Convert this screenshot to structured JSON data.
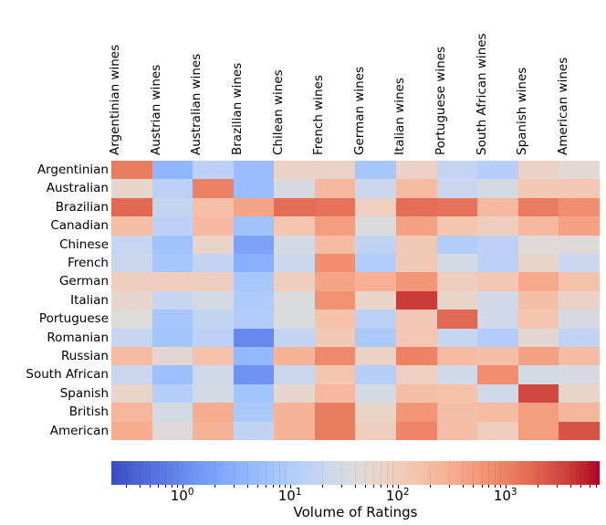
{
  "colors": {
    "background": "#ffffff",
    "text": "#000000",
    "colormap_low": "#3b4cc0",
    "colormap_mid": "#dddcdb",
    "colormap_high": "#b40426"
  },
  "chart_data": {
    "type": "heatmap",
    "title": "",
    "xlabel": "",
    "ylabel": "",
    "colormap": "coolwarm",
    "color_scale": "log",
    "colorbar_label": "Volume of Ratings",
    "colorbar_range": [
      0.22,
      7500
    ],
    "colorbar_ticks": [
      {
        "value": 1,
        "base": "10",
        "exp": "0"
      },
      {
        "value": 10,
        "base": "10",
        "exp": "1"
      },
      {
        "value": 100,
        "base": "10",
        "exp": "2"
      },
      {
        "value": 1000,
        "base": "10",
        "exp": "3"
      }
    ],
    "x_categories": [
      "Argentinian wines",
      "Austrian wines",
      "Australian wines",
      "Brazilian wines",
      "Chilean wines",
      "French wines",
      "German wines",
      "Italian wines",
      "Portuguese wines",
      "South African wines",
      "Spanish wines",
      "American wines"
    ],
    "y_categories": [
      "Argentinian",
      "Australian",
      "Brazilian",
      "Canadian",
      "Chinese",
      "French",
      "German",
      "Italian",
      "Portuguese",
      "Romanian",
      "Russian",
      "South African",
      "Spanish",
      "British",
      "American"
    ],
    "values": [
      [
        1150,
        3.7,
        14,
        5,
        76,
        76,
        7.6,
        76,
        18,
        12,
        76,
        50
      ],
      [
        62,
        14,
        1030,
        5,
        33,
        216,
        22,
        194,
        22,
        30,
        128,
        128
      ],
      [
        1740,
        18,
        175,
        404,
        1570,
        1410,
        84,
        1570,
        1410,
        216,
        1150,
        755
      ],
      [
        175,
        14,
        216,
        6.2,
        142,
        497,
        37,
        448,
        142,
        94,
        216,
        448
      ],
      [
        19.5,
        6.2,
        68,
        2,
        30,
        194,
        16,
        115,
        10.4,
        14,
        45,
        45
      ],
      [
        22,
        7.6,
        17.6,
        3,
        22,
        755,
        10.4,
        115,
        30,
        14,
        68,
        22
      ],
      [
        94,
        94,
        94,
        7.6,
        94,
        404,
        295,
        612,
        94,
        128,
        363,
        158
      ],
      [
        62,
        19.5,
        30,
        9.4,
        37,
        679,
        68,
        4000,
        68,
        27,
        175,
        76
      ],
      [
        41,
        7.6,
        17.6,
        10.4,
        37,
        158,
        14,
        128,
        1740,
        27,
        142,
        33
      ],
      [
        19.5,
        6.9,
        14,
        0.95,
        17.6,
        115,
        8.5,
        128,
        19.5,
        10.4,
        55,
        16
      ],
      [
        194,
        55,
        158,
        4.1,
        266,
        837,
        76,
        1030,
        194,
        175,
        448,
        194
      ],
      [
        22,
        5.6,
        27,
        1.3,
        22,
        142,
        11.6,
        84,
        27,
        755,
        30,
        33
      ],
      [
        68,
        11.6,
        30,
        6.9,
        62,
        216,
        30,
        175,
        158,
        27,
        3250,
        68
      ],
      [
        239,
        30,
        327,
        8.5,
        266,
        1150,
        68,
        612,
        175,
        194,
        497,
        239
      ],
      [
        327,
        45,
        266,
        16,
        266,
        1150,
        94,
        929,
        175,
        94,
        497,
        2640
      ]
    ]
  }
}
